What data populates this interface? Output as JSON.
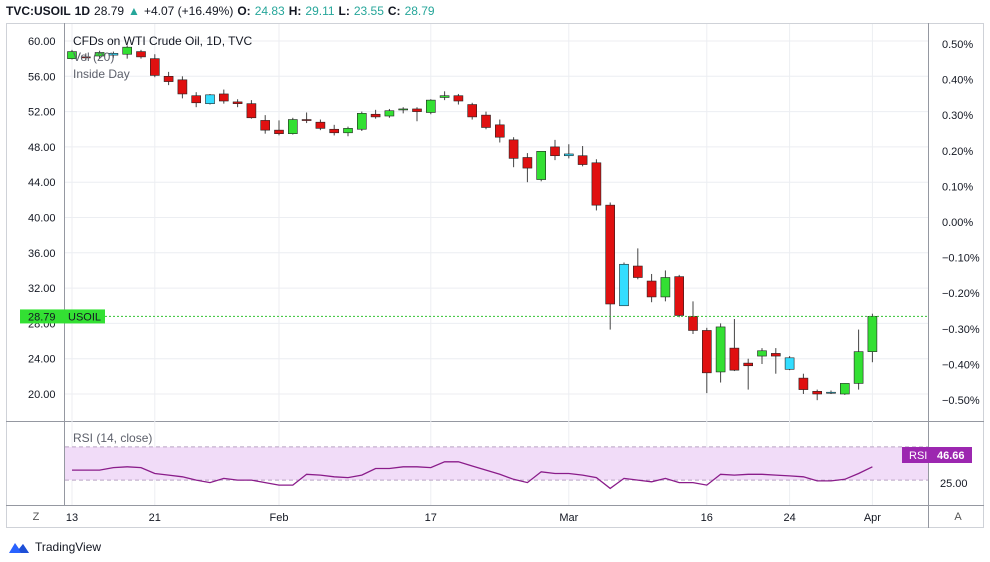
{
  "header": {
    "symbol": "TVC:USOIL",
    "interval": "1D",
    "last": "28.79",
    "change": "+4.07 (+16.49%)",
    "o_label": "O:",
    "o_value": "24.83",
    "h_label": "H:",
    "h_value": "29.11",
    "l_label": "L:",
    "l_value": "23.55",
    "c_label": "C:",
    "c_value": "28.79"
  },
  "legend": {
    "title": "CFDs on WTI Crude Oil, 1D, TVC",
    "vol": "Vol (20)",
    "pattern": "Inside Day"
  },
  "price_tag": {
    "value": "28.79",
    "symbol": "USOIL"
  },
  "rsi": {
    "label": "RSI (14, close)",
    "tag_name": "RSI",
    "tag_value": "46.66",
    "level_label": "25.00"
  },
  "footer": {
    "brand": "TradingView",
    "left_button": "Z",
    "right_button": "A"
  },
  "colors": {
    "up": "#33e033",
    "down": "#e01010",
    "inside": "#33ddff",
    "wick": "#444444",
    "price_tag": "#33e033",
    "rsi_line": "#8a1c8a",
    "rsi_tag": "#9c27b0",
    "rsi_band": "#f1dcf8"
  },
  "chart_data": [
    {
      "type": "candlestick",
      "title": "CFDs on WTI Crude Oil, 1D, TVC",
      "left_axis": {
        "ticks": [
          60,
          56,
          52,
          48,
          44,
          40,
          36,
          32,
          28,
          24,
          20
        ],
        "labels": [
          "60.00",
          "56.00",
          "52.00",
          "48.00",
          "44.00",
          "40.00",
          "36.00",
          "32.00",
          "28.00",
          "24.00",
          "20.00"
        ],
        "range": [
          18,
          61
        ]
      },
      "right_axis": {
        "labels": [
          "0.50%",
          "0.40%",
          "0.30%",
          "0.20%",
          "0.10%",
          "0.00%",
          "−0.10%",
          "−0.20%",
          "−0.30%",
          "−0.40%",
          "−0.50%"
        ]
      },
      "x_ticks": [
        "13",
        "21",
        "Feb",
        "17",
        "Mar",
        "16",
        "24",
        "Apr"
      ],
      "x_tick_index": [
        0,
        6,
        15,
        26,
        36,
        46,
        52,
        58
      ],
      "ohlc": [
        [
          58.0,
          59.0,
          57.9,
          58.8
        ],
        [
          58.2,
          58.6,
          57.8,
          58.1
        ],
        [
          58.3,
          58.9,
          58.0,
          58.7
        ],
        [
          58.4,
          58.8,
          58.1,
          58.6
        ],
        [
          58.5,
          59.5,
          58.0,
          59.3
        ],
        [
          58.8,
          59.0,
          58.0,
          58.2
        ],
        [
          58.0,
          58.5,
          55.9,
          56.1
        ],
        [
          56.0,
          56.5,
          55.0,
          55.4
        ],
        [
          55.6,
          56.0,
          53.5,
          54.0
        ],
        [
          53.8,
          54.2,
          52.5,
          53.0
        ],
        [
          52.9,
          54.0,
          52.8,
          53.9
        ],
        [
          54.0,
          54.5,
          52.9,
          53.2
        ],
        [
          53.1,
          53.4,
          52.5,
          52.9
        ],
        [
          52.9,
          53.3,
          51.2,
          51.3
        ],
        [
          51.0,
          51.6,
          49.5,
          49.9
        ],
        [
          49.9,
          51.0,
          49.3,
          49.5
        ],
        [
          49.5,
          51.3,
          49.4,
          51.1
        ],
        [
          51.1,
          51.9,
          50.7,
          51.0
        ],
        [
          50.8,
          51.1,
          49.9,
          50.1
        ],
        [
          50.0,
          50.5,
          49.3,
          49.6
        ],
        [
          49.6,
          50.3,
          49.2,
          50.1
        ],
        [
          50.0,
          52.0,
          49.8,
          51.8
        ],
        [
          51.7,
          52.2,
          51.2,
          51.4
        ],
        [
          51.5,
          52.3,
          51.3,
          52.1
        ],
        [
          52.2,
          52.5,
          51.8,
          52.3
        ],
        [
          52.3,
          52.5,
          50.9,
          52.0
        ],
        [
          51.9,
          53.4,
          51.7,
          53.3
        ],
        [
          53.6,
          54.3,
          53.3,
          53.8
        ],
        [
          53.8,
          54.0,
          52.8,
          53.2
        ],
        [
          52.8,
          53.0,
          51.1,
          51.4
        ],
        [
          51.6,
          52.0,
          50.0,
          50.2
        ],
        [
          50.5,
          51.1,
          48.5,
          49.1
        ],
        [
          48.8,
          49.1,
          45.7,
          46.7
        ],
        [
          46.8,
          47.3,
          44.0,
          45.6
        ],
        [
          44.3,
          47.5,
          44.1,
          47.5
        ],
        [
          48.0,
          48.8,
          46.5,
          47.0
        ],
        [
          47.0,
          48.3,
          46.7,
          47.2
        ],
        [
          47.0,
          48.1,
          45.8,
          46.0
        ],
        [
          46.2,
          46.6,
          40.8,
          41.4
        ],
        [
          41.4,
          41.7,
          27.3,
          30.2
        ],
        [
          30.0,
          34.9,
          30.0,
          34.7
        ],
        [
          34.5,
          36.5,
          33.0,
          33.2
        ],
        [
          32.8,
          33.6,
          30.4,
          31.0
        ],
        [
          31.0,
          34.0,
          30.5,
          33.2
        ],
        [
          33.3,
          33.5,
          28.7,
          28.9
        ],
        [
          28.8,
          30.5,
          26.8,
          27.2
        ],
        [
          27.2,
          27.5,
          20.1,
          22.4
        ],
        [
          22.5,
          28.0,
          21.3,
          27.6
        ],
        [
          25.2,
          28.5,
          22.6,
          22.7
        ],
        [
          23.5,
          24.0,
          20.5,
          23.2
        ],
        [
          24.3,
          25.2,
          23.4,
          24.9
        ],
        [
          24.6,
          25.2,
          22.3,
          24.3
        ],
        [
          24.1,
          24.3,
          22.7,
          22.8
        ],
        [
          21.8,
          22.3,
          20.0,
          20.5
        ],
        [
          20.3,
          20.5,
          19.3,
          20.0
        ],
        [
          20.2,
          20.4,
          20.0,
          20.1
        ],
        [
          20.0,
          21.2,
          19.9,
          21.2
        ],
        [
          21.2,
          27.3,
          20.5,
          24.8
        ],
        [
          24.8,
          29.1,
          23.6,
          28.8
        ]
      ]
    },
    {
      "type": "line",
      "title": "RSI (14, close)",
      "y_ticks": [
        25
      ],
      "ylim": [
        0,
        100
      ],
      "band": [
        30,
        70
      ],
      "values": [
        42,
        42,
        42,
        45,
        46,
        45,
        38,
        36,
        34,
        30,
        27,
        32,
        30,
        30,
        27,
        24,
        24,
        37,
        36,
        34,
        33,
        36,
        44,
        44,
        46,
        46,
        45,
        52,
        52,
        47,
        42,
        37,
        31,
        27,
        40,
        38,
        38,
        36,
        33,
        20,
        32,
        30,
        28,
        32,
        27,
        27,
        24,
        37,
        36,
        37,
        37,
        36,
        35,
        34,
        29,
        29,
        31,
        38,
        46
      ]
    }
  ]
}
